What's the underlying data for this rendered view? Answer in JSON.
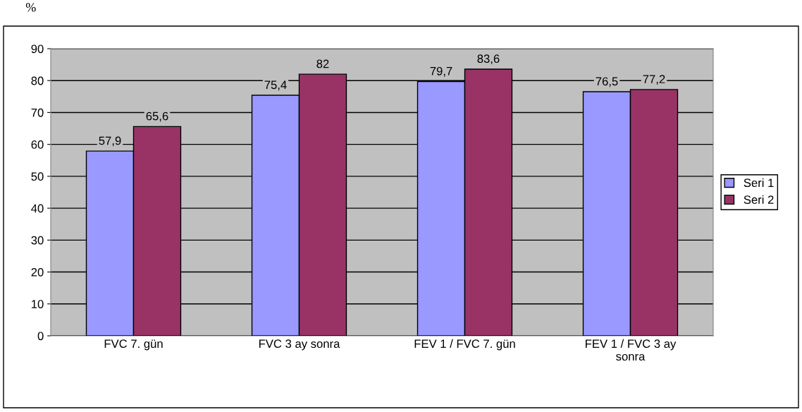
{
  "chart_data": {
    "type": "bar",
    "ylabel": "%",
    "categories": [
      "FVC 7. gün",
      "FVC 3 ay sonra",
      "FEV 1 / FVC 7. gün",
      "FEV 1 / FVC 3 ay\nsonra"
    ],
    "series": [
      {
        "name": "Seri 1",
        "color": "#9999ff",
        "values": [
          57.9,
          75.4,
          79.7,
          76.5
        ],
        "value_labels": [
          "57,9",
          "75,4",
          "79,7",
          "76,5"
        ]
      },
      {
        "name": "Seri 2",
        "color": "#993366",
        "values": [
          65.6,
          82,
          83.6,
          77.2
        ],
        "value_labels": [
          "65,6",
          "82",
          "83,6",
          "77,2"
        ]
      }
    ],
    "ylim": [
      0,
      90
    ],
    "yticks": [
      0,
      10,
      20,
      30,
      40,
      50,
      60,
      70,
      80,
      90
    ],
    "grid": "y",
    "legend": "right"
  }
}
